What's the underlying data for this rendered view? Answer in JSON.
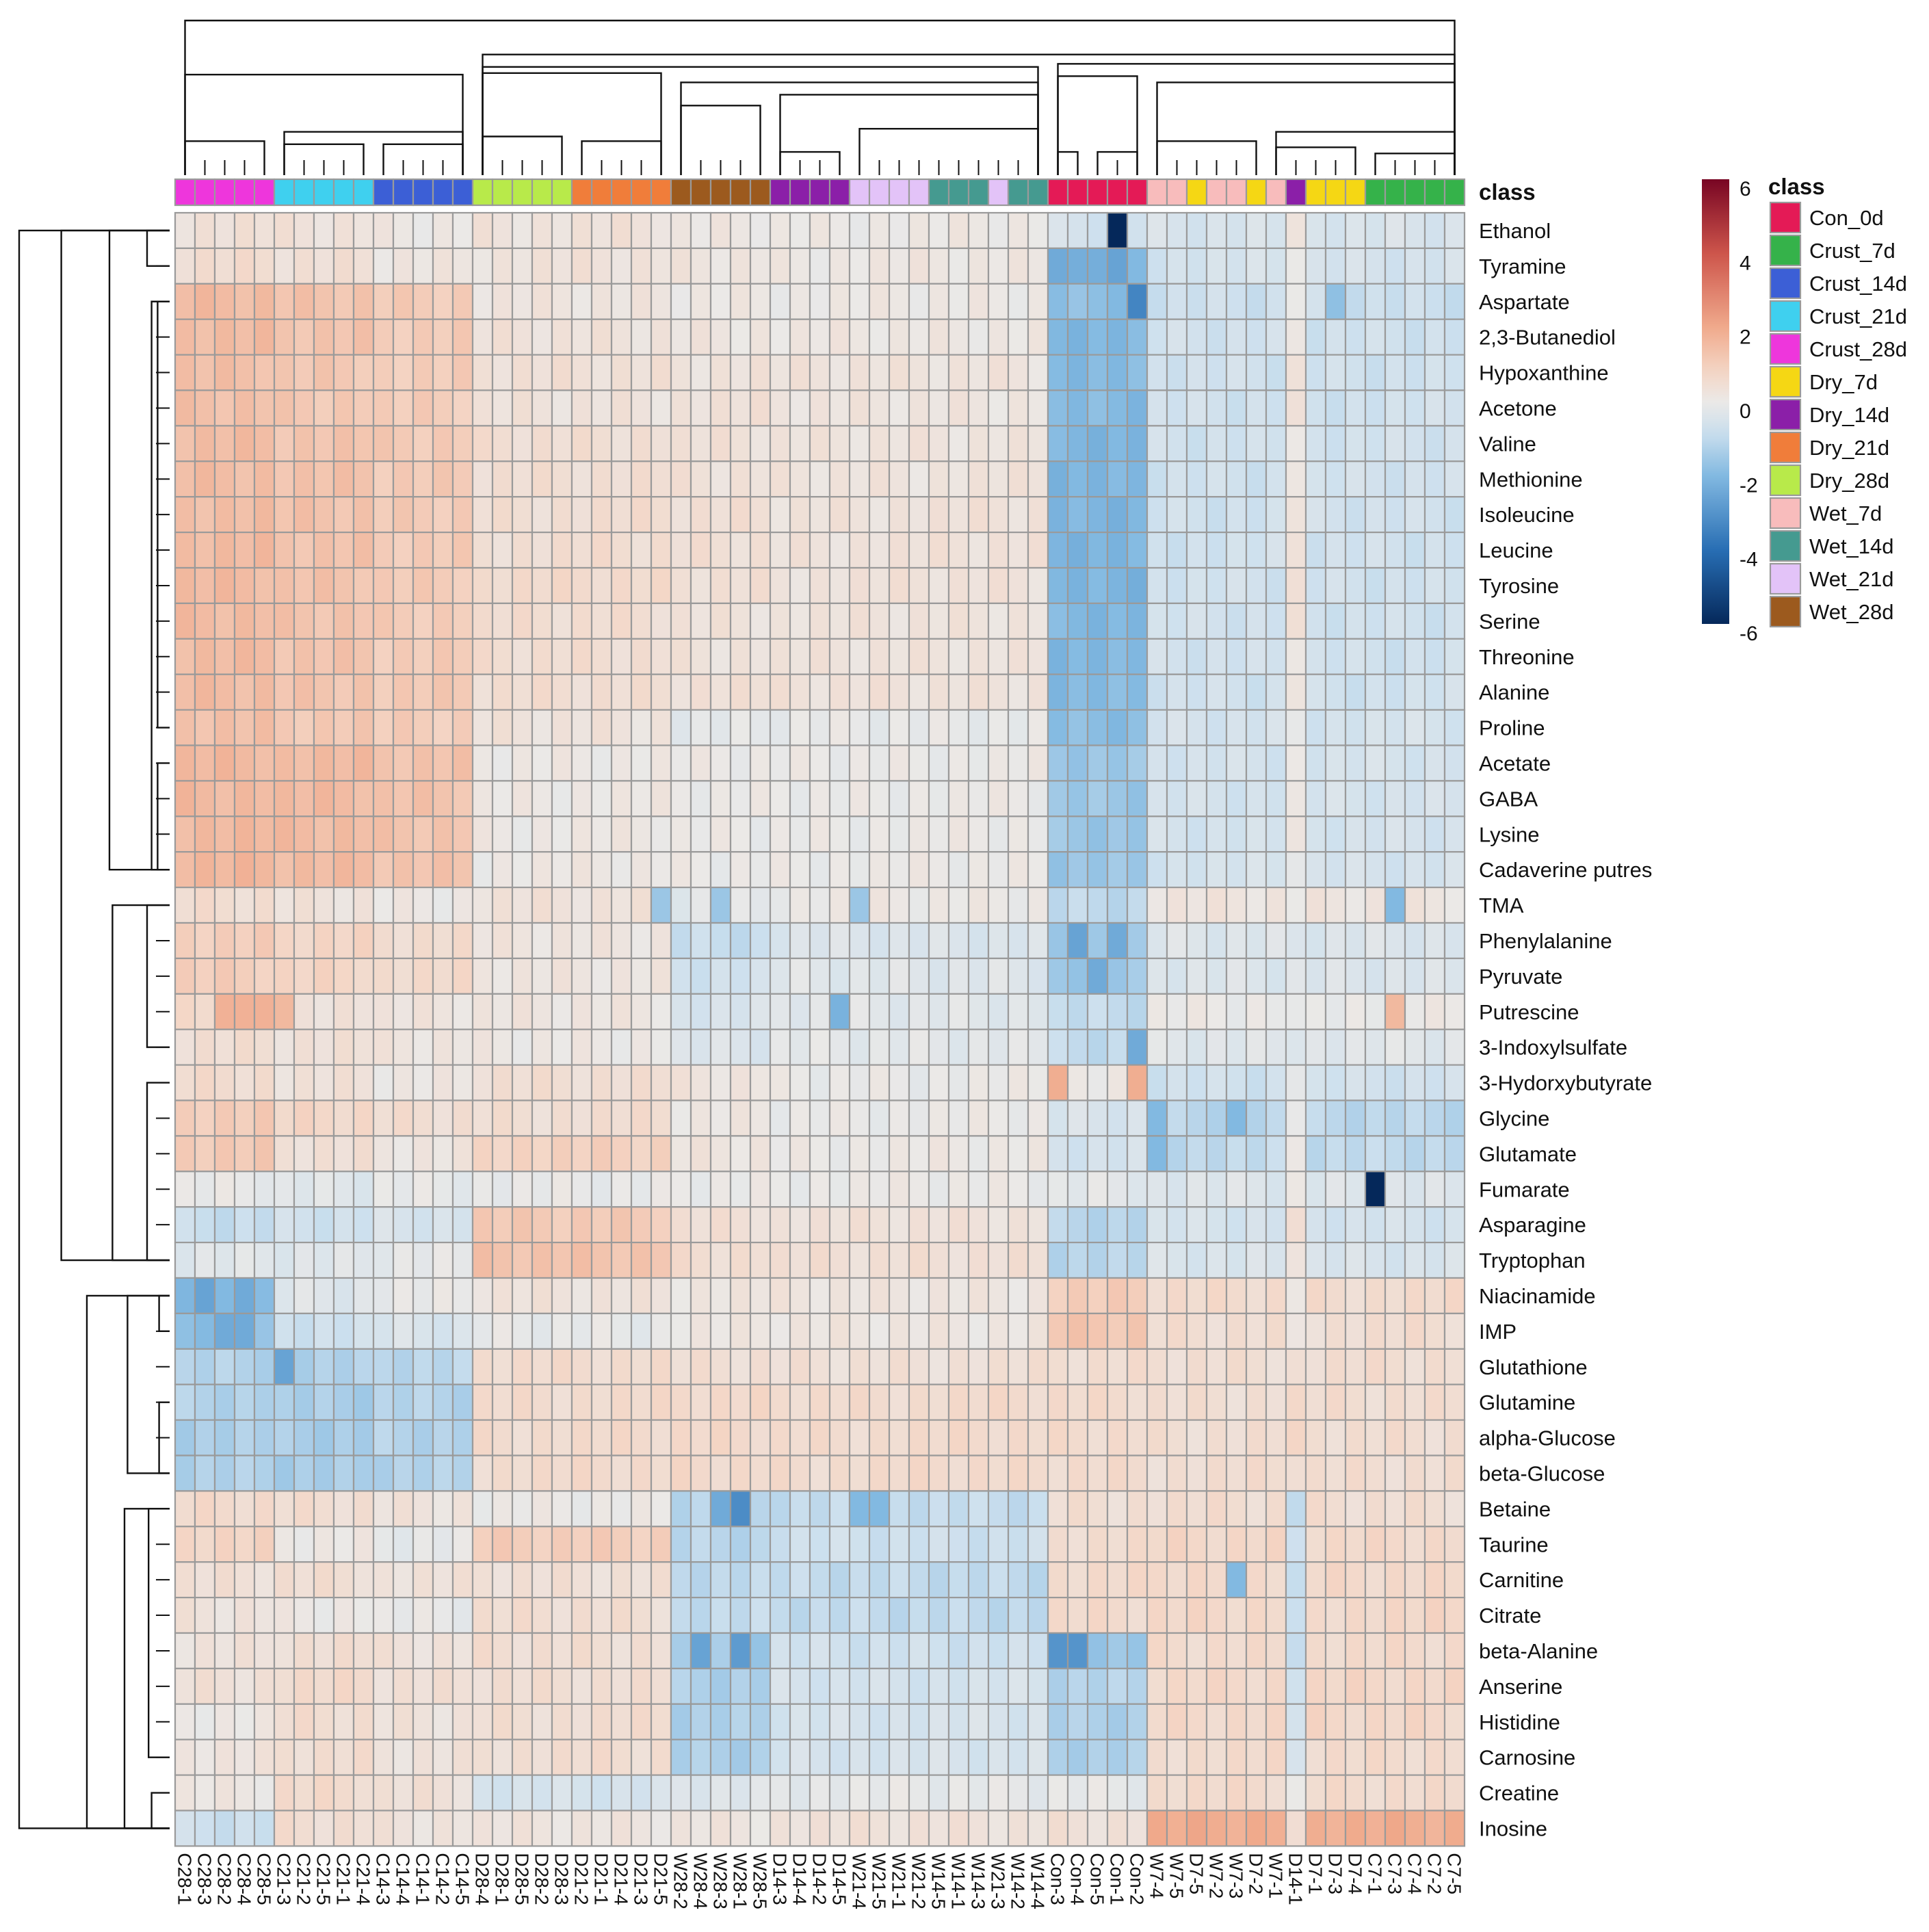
{
  "chart_data": {
    "type": "heatmap",
    "annotation_title": "class",
    "legend_title": "class",
    "color_scale": {
      "min": -6,
      "max": 6,
      "ticks": [
        6,
        4,
        2,
        0,
        -2,
        -4,
        -6
      ]
    },
    "classes": [
      {
        "name": "Con_0d",
        "color": "#e41a56"
      },
      {
        "name": "Crust_7d",
        "color": "#35b24a"
      },
      {
        "name": "Crust_14d",
        "color": "#3c5fd6"
      },
      {
        "name": "Crust_21d",
        "color": "#3fd0ef"
      },
      {
        "name": "Crust_28d",
        "color": "#ee36dc"
      },
      {
        "name": "Dry_7d",
        "color": "#f5d714"
      },
      {
        "name": "Dry_14d",
        "color": "#8b1fa8"
      },
      {
        "name": "Dry_21d",
        "color": "#f07d3a"
      },
      {
        "name": "Dry_28d",
        "color": "#b8ea4a"
      },
      {
        "name": "Wet_7d",
        "color": "#f8bcbc"
      },
      {
        "name": "Wet_14d",
        "color": "#459a90"
      },
      {
        "name": "Wet_21d",
        "color": "#e3c3f8"
      },
      {
        "name": "Wet_28d",
        "color": "#9c5a1e"
      }
    ],
    "samples": [
      "C28-1",
      "C28-3",
      "C28-2",
      "C28-4",
      "C28-5",
      "C21-3",
      "C21-2",
      "C21-5",
      "C21-1",
      "C21-4",
      "C14-3",
      "C14-4",
      "C14-1",
      "C14-2",
      "C14-5",
      "D28-4",
      "D28-1",
      "D28-5",
      "D28-2",
      "D28-3",
      "D21-2",
      "D21-1",
      "D21-4",
      "D21-3",
      "D21-5",
      "W28-2",
      "W28-4",
      "W28-3",
      "W28-1",
      "W28-5",
      "D14-3",
      "D14-4",
      "D14-2",
      "D14-5",
      "W21-4",
      "W21-5",
      "W21-1",
      "W21-2",
      "W14-5",
      "W14-1",
      "W14-3",
      "W21-3",
      "W14-2",
      "W14-4",
      "Con-3",
      "Con-4",
      "Con-5",
      "Con-1",
      "Con-2",
      "W7-4",
      "W7-5",
      "D7-5",
      "W7-2",
      "W7-3",
      "D7-2",
      "W7-1",
      "D14-1",
      "D7-1",
      "D7-3",
      "D7-4",
      "C7-1",
      "C7-3",
      "C7-4",
      "C7-2",
      "C7-5"
    ],
    "sample_class": [
      "Crust_28d",
      "Crust_28d",
      "Crust_28d",
      "Crust_28d",
      "Crust_28d",
      "Crust_21d",
      "Crust_21d",
      "Crust_21d",
      "Crust_21d",
      "Crust_21d",
      "Crust_14d",
      "Crust_14d",
      "Crust_14d",
      "Crust_14d",
      "Crust_14d",
      "Dry_28d",
      "Dry_28d",
      "Dry_28d",
      "Dry_28d",
      "Dry_28d",
      "Dry_21d",
      "Dry_21d",
      "Dry_21d",
      "Dry_21d",
      "Dry_21d",
      "Wet_28d",
      "Wet_28d",
      "Wet_28d",
      "Wet_28d",
      "Wet_28d",
      "Dry_14d",
      "Dry_14d",
      "Dry_14d",
      "Dry_14d",
      "Wet_21d",
      "Wet_21d",
      "Wet_21d",
      "Wet_21d",
      "Wet_14d",
      "Wet_14d",
      "Wet_14d",
      "Wet_21d",
      "Wet_14d",
      "Wet_14d",
      "Con_0d",
      "Con_0d",
      "Con_0d",
      "Con_0d",
      "Con_0d",
      "Wet_7d",
      "Wet_7d",
      "Dry_7d",
      "Wet_7d",
      "Wet_7d",
      "Dry_7d",
      "Wet_7d",
      "Dry_14d",
      "Dry_7d",
      "Dry_7d",
      "Dry_7d",
      "Crust_7d",
      "Crust_7d",
      "Crust_7d",
      "Crust_7d",
      "Crust_7d"
    ],
    "metabolites": [
      "Ethanol",
      "Tyramine",
      "Aspartate",
      "2,3-Butanediol",
      "Hypoxanthine",
      "Acetone",
      "Valine",
      "Methionine",
      "Isoleucine",
      "Leucine",
      "Tyrosine",
      "Serine",
      "Threonine",
      "Alanine",
      "Proline",
      "Acetate",
      "GABA",
      "Lysine",
      "Cadaverine  putres",
      "TMA",
      "Phenylalanine",
      "Pyruvate",
      "Putrescine",
      "3-Indoxylsulfate",
      "3-Hydorxybutyrate",
      "Glycine",
      "Glutamate",
      "Fumarate",
      "Asparagine",
      "Tryptophan",
      "Niacinamide",
      "IMP",
      "Glutathione",
      "Glutamine",
      "alpha-Glucose",
      "beta-Glucose",
      "Betaine",
      "Taurine",
      "Carnitine",
      "Citrate",
      "beta-Alanine",
      "Anserine",
      "Histidine",
      "Carnosine",
      "Creatine",
      "Inosine"
    ],
    "row_profiles": [
      [
        0.4,
        0.3,
        0.3,
        0.1,
        0.0,
        -0.6,
        -0.5
      ],
      [
        0.5,
        0.4,
        0.3,
        0.2,
        0.0,
        -2.0,
        -0.6
      ],
      [
        1.5,
        1.3,
        0.2,
        0.1,
        0.0,
        -1.8,
        -0.8
      ],
      [
        1.5,
        1.3,
        0.3,
        0.2,
        0.0,
        -2.0,
        -0.7
      ],
      [
        1.4,
        1.2,
        0.4,
        0.3,
        0.2,
        -2.0,
        -0.7
      ],
      [
        1.4,
        1.2,
        0.3,
        0.3,
        0.1,
        -2.0,
        -0.7
      ],
      [
        1.5,
        1.3,
        0.5,
        0.3,
        0.2,
        -2.1,
        -0.7
      ],
      [
        1.5,
        1.3,
        0.5,
        0.3,
        0.2,
        -2.1,
        -0.7
      ],
      [
        1.5,
        1.3,
        0.5,
        0.4,
        0.2,
        -2.1,
        -0.7
      ],
      [
        1.5,
        1.3,
        0.5,
        0.4,
        0.2,
        -2.1,
        -0.7
      ],
      [
        1.5,
        1.3,
        0.6,
        0.4,
        0.2,
        -2.1,
        -0.7
      ],
      [
        1.5,
        1.3,
        0.5,
        0.3,
        0.2,
        -2.0,
        -0.7
      ],
      [
        1.5,
        1.3,
        0.5,
        0.3,
        0.2,
        -2.0,
        -0.7
      ],
      [
        1.5,
        1.3,
        0.5,
        0.4,
        0.2,
        -2.0,
        -0.7
      ],
      [
        1.4,
        1.2,
        0.3,
        -0.2,
        0.1,
        -1.9,
        -0.6
      ],
      [
        1.6,
        1.5,
        0.1,
        0.0,
        0.0,
        -1.6,
        -0.6
      ],
      [
        1.6,
        1.5,
        0.1,
        0.0,
        0.0,
        -1.6,
        -0.6
      ],
      [
        1.6,
        1.5,
        0.1,
        0.0,
        0.0,
        -1.6,
        -0.6
      ],
      [
        1.6,
        1.5,
        0.1,
        0.0,
        0.0,
        -1.6,
        -0.6
      ],
      [
        0.5,
        0.3,
        0.3,
        -0.2,
        0.4,
        -1.0,
        0.2
      ],
      [
        1.0,
        0.8,
        0.2,
        -0.8,
        0.1,
        -1.6,
        -0.4
      ],
      [
        1.0,
        0.8,
        0.2,
        -0.6,
        0.1,
        -1.6,
        -0.4
      ],
      [
        0.6,
        0.4,
        0.2,
        -0.5,
        0.1,
        -1.0,
        0.0
      ],
      [
        0.5,
        0.4,
        0.1,
        -0.4,
        0.1,
        -1.0,
        -0.3
      ],
      [
        0.6,
        0.3,
        0.5,
        0.2,
        -0.4,
        0.0,
        -0.7
      ],
      [
        1.1,
        0.7,
        0.5,
        0.1,
        -0.2,
        -0.5,
        -1.1
      ],
      [
        1.1,
        0.4,
        0.9,
        0.2,
        -0.2,
        -0.6,
        -1.0
      ],
      [
        -0.1,
        -0.3,
        -0.1,
        0.0,
        0.0,
        -0.2,
        -0.4
      ],
      [
        -0.9,
        -0.7,
        1.1,
        0.4,
        0.2,
        -1.1,
        -0.6
      ],
      [
        -0.3,
        -0.3,
        1.3,
        0.5,
        0.3,
        -1.1,
        -0.5
      ],
      [
        -2.0,
        -0.3,
        0.3,
        0.2,
        0.2,
        1.0,
        0.6
      ],
      [
        -1.8,
        -0.7,
        -0.1,
        0.1,
        0.3,
        1.2,
        0.5
      ],
      [
        -1.2,
        -1.3,
        0.6,
        0.4,
        0.4,
        0.5,
        0.5
      ],
      [
        -1.2,
        -1.4,
        0.6,
        0.6,
        0.6,
        0.6,
        0.5
      ],
      [
        -1.3,
        -1.4,
        0.6,
        0.6,
        0.6,
        0.6,
        0.5
      ],
      [
        -1.3,
        -1.4,
        0.6,
        0.6,
        0.6,
        0.6,
        0.5
      ],
      [
        0.6,
        0.5,
        0.0,
        -1.0,
        -0.8,
        0.5,
        0.5
      ],
      [
        0.8,
        0.1,
        1.0,
        -1.0,
        -0.4,
        0.6,
        0.7
      ],
      [
        0.4,
        0.5,
        0.4,
        -0.9,
        -1.1,
        0.6,
        0.7
      ],
      [
        0.3,
        0.1,
        0.5,
        -0.9,
        -1.1,
        0.6,
        0.7
      ],
      [
        0.3,
        0.5,
        0.5,
        -1.4,
        0.3,
        -1.6,
        0.6
      ],
      [
        0.4,
        0.6,
        0.5,
        -1.2,
        0.3,
        -1.2,
        0.7
      ],
      [
        0.1,
        0.5,
        0.5,
        -1.2,
        0.4,
        -1.3,
        0.7
      ],
      [
        0.2,
        0.5,
        0.5,
        -1.2,
        0.4,
        -1.3,
        0.6
      ],
      [
        0.1,
        0.6,
        -0.6,
        -0.3,
        0.1,
        -0.1,
        0.6
      ],
      [
        -0.8,
        0.5,
        0.2,
        0.2,
        0.5,
        0.4,
        1.9
      ]
    ],
    "overrides": [
      [
        0,
        47,
        -6.2
      ],
      [
        27,
        60,
        -6.2
      ],
      [
        2,
        48,
        -3.4
      ],
      [
        1,
        44,
        -2.4
      ],
      [
        1,
        45,
        -2.3
      ],
      [
        1,
        46,
        -2.3
      ],
      [
        1,
        47,
        -2.6
      ],
      [
        1,
        48,
        -2.0
      ],
      [
        24,
        44,
        1.9
      ],
      [
        24,
        48,
        1.9
      ],
      [
        22,
        2,
        1.8
      ],
      [
        22,
        3,
        1.8
      ],
      [
        22,
        4,
        1.8
      ],
      [
        22,
        5,
        1.6
      ],
      [
        36,
        28,
        -3.2
      ],
      [
        36,
        27,
        -2.4
      ],
      [
        36,
        34,
        -2.0
      ],
      [
        36,
        35,
        -2.0
      ],
      [
        40,
        26,
        -2.6
      ],
      [
        40,
        28,
        -2.8
      ],
      [
        40,
        44,
        -3.0
      ],
      [
        40,
        45,
        -3.0
      ],
      [
        32,
        5,
        -2.6
      ],
      [
        30,
        1,
        -2.6
      ],
      [
        30,
        3,
        -2.4
      ],
      [
        31,
        2,
        -2.4
      ],
      [
        31,
        3,
        -2.4
      ],
      [
        20,
        45,
        -2.6
      ],
      [
        20,
        47,
        -2.4
      ],
      [
        21,
        46,
        -2.4
      ],
      [
        23,
        48,
        -2.4
      ],
      [
        19,
        61,
        -2.0
      ],
      [
        19,
        24,
        -1.6
      ],
      [
        19,
        27,
        -1.6
      ],
      [
        26,
        49,
        -2.0
      ],
      [
        25,
        49,
        -2.0
      ],
      [
        25,
        53,
        -2.0
      ],
      [
        38,
        53,
        -2.0
      ],
      [
        22,
        61,
        1.6
      ],
      [
        22,
        33,
        -2.2
      ],
      [
        2,
        58,
        -1.8
      ],
      [
        19,
        34,
        -1.6
      ]
    ],
    "row_dendrogram": [
      {
        "depth": 0.0,
        "a": 0,
        "b": 45
      },
      {
        "depth": 0.28,
        "a": 0,
        "b": 29
      },
      {
        "depth": 0.45,
        "a": 30,
        "b": 45
      },
      {
        "depth": 0.6,
        "a": 0,
        "b": 18
      },
      {
        "depth": 0.62,
        "a": 19,
        "b": 29
      },
      {
        "depth": 0.72,
        "a": 30,
        "b": 35
      },
      {
        "depth": 0.7,
        "a": 36,
        "b": 45
      },
      {
        "depth": 0.85,
        "a": 0,
        "b": 1
      },
      {
        "depth": 0.88,
        "a": 2,
        "b": 18
      },
      {
        "depth": 0.85,
        "a": 19,
        "b": 23
      },
      {
        "depth": 0.85,
        "a": 24,
        "b": 29
      },
      {
        "depth": 0.86,
        "a": 36,
        "b": 43
      },
      {
        "depth": 0.88,
        "a": 44,
        "b": 45
      },
      {
        "depth": 0.92,
        "a": 2,
        "b": 14
      },
      {
        "depth": 0.92,
        "a": 15,
        "b": 18
      },
      {
        "depth": 0.93,
        "a": 30,
        "b": 31
      },
      {
        "depth": 0.93,
        "a": 33,
        "b": 35
      }
    ],
    "col_dendrogram": [
      {
        "depth": 0.0,
        "a": 0,
        "b": 64
      },
      {
        "depth": 0.35,
        "a": 0,
        "b": 14
      },
      {
        "depth": 0.22,
        "a": 15,
        "b": 64
      },
      {
        "depth": 0.3,
        "a": 15,
        "b": 43
      },
      {
        "depth": 0.28,
        "a": 44,
        "b": 64
      },
      {
        "depth": 0.34,
        "a": 15,
        "b": 24
      },
      {
        "depth": 0.4,
        "a": 25,
        "b": 43
      },
      {
        "depth": 0.36,
        "a": 44,
        "b": 48
      },
      {
        "depth": 0.4,
        "a": 49,
        "b": 64
      },
      {
        "depth": 0.78,
        "a": 0,
        "b": 4
      },
      {
        "depth": 0.72,
        "a": 5,
        "b": 14
      },
      {
        "depth": 0.8,
        "a": 5,
        "b": 9
      },
      {
        "depth": 0.8,
        "a": 10,
        "b": 14
      },
      {
        "depth": 0.75,
        "a": 15,
        "b": 19
      },
      {
        "depth": 0.78,
        "a": 20,
        "b": 24
      },
      {
        "depth": 0.55,
        "a": 25,
        "b": 29
      },
      {
        "depth": 0.48,
        "a": 30,
        "b": 43
      },
      {
        "depth": 0.85,
        "a": 30,
        "b": 33
      },
      {
        "depth": 0.7,
        "a": 34,
        "b": 43
      },
      {
        "depth": 0.85,
        "a": 44,
        "b": 45
      },
      {
        "depth": 0.85,
        "a": 46,
        "b": 48
      },
      {
        "depth": 0.78,
        "a": 49,
        "b": 54
      },
      {
        "depth": 0.72,
        "a": 55,
        "b": 64
      },
      {
        "depth": 0.82,
        "a": 55,
        "b": 59
      },
      {
        "depth": 0.86,
        "a": 60,
        "b": 64
      }
    ]
  }
}
